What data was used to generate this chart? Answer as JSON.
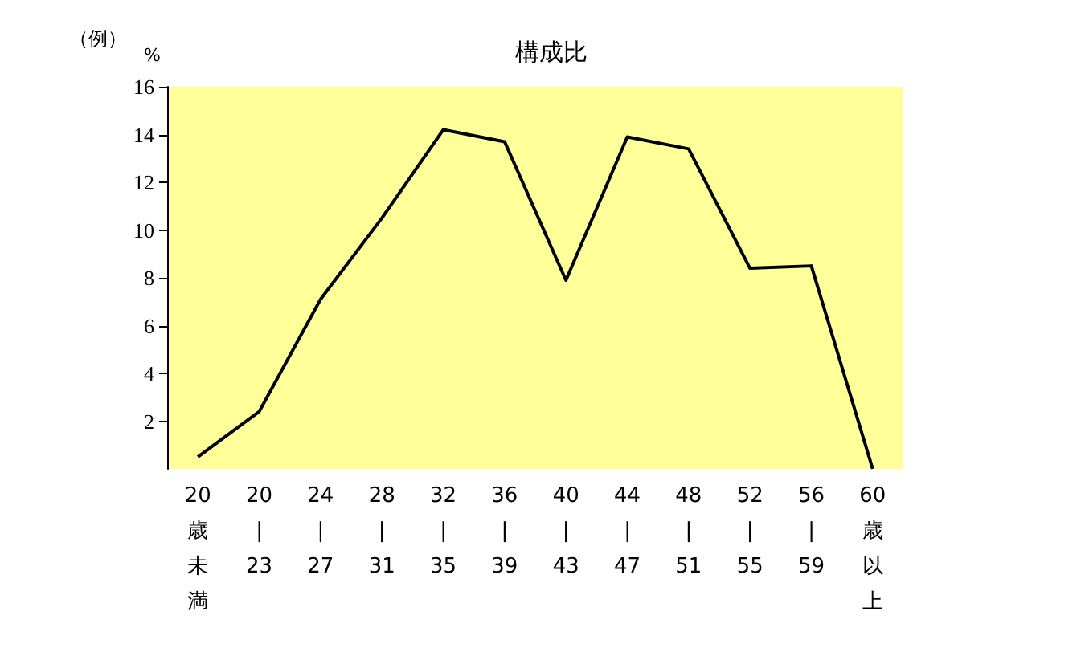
{
  "chart_data": {
    "type": "line",
    "title": "構成比",
    "ylabel": "%",
    "annotations": [
      "（例）"
    ],
    "categories": [
      "20歳未満",
      "20|23",
      "24|27",
      "28|31",
      "32|35",
      "36|39",
      "40|43",
      "44|47",
      "48|51",
      "52|55",
      "56|59",
      "60歳以上"
    ],
    "series": [
      {
        "color": "#000000",
        "values": [
          0.5,
          2.4,
          7.1,
          10.5,
          14.2,
          13.7,
          7.9,
          13.9,
          13.4,
          8.4,
          8.5,
          0
        ]
      }
    ],
    "ylim": [
      0,
      16
    ],
    "yticks": [
      2,
      4,
      6,
      8,
      10,
      12,
      14,
      16
    ],
    "grid": false,
    "marker": "none",
    "line_style": "solid"
  }
}
